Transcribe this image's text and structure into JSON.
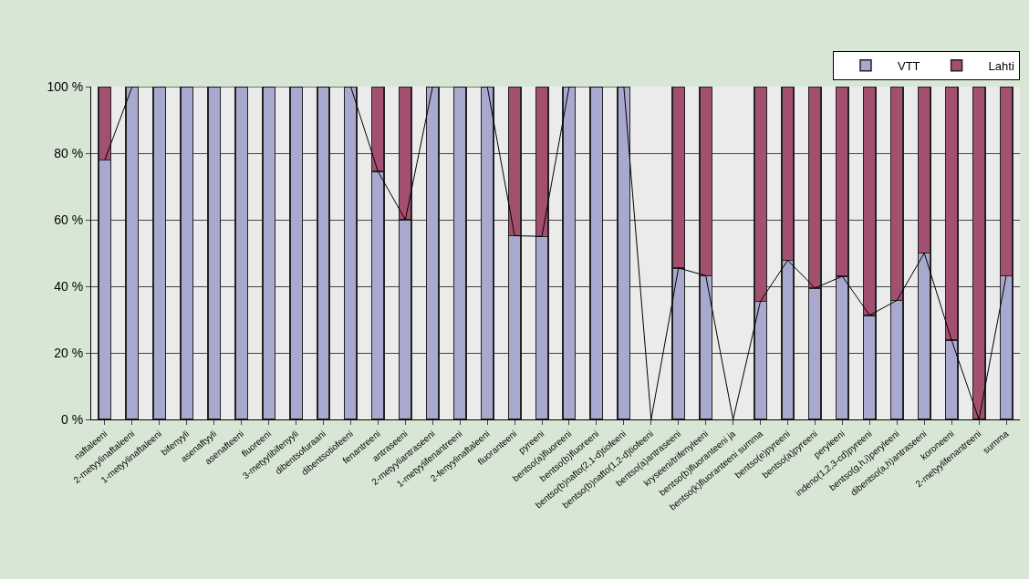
{
  "chart_data": {
    "type": "bar",
    "stacked": true,
    "categories": [
      "naftaleeni",
      "2-metyylinaftaleeni",
      "1-metyylinaftaleeni",
      "bifenyyli",
      "asenaftyyli",
      "asenafteeni",
      "fluoreeni",
      "3-metyylibifenyyli",
      "dibentsofuraani",
      "dibentsotiofeeni",
      "fenantreeni",
      "antraseeni",
      "2-metyyliantraseeni",
      "1-metyylifenantreeni",
      "2-fenyylinaftaleeni",
      "fluoranteeni",
      "pyreeni",
      "bentso(a)fluoreeni",
      "bentso(b)fluoreeni",
      "bentso(b)nafto(2,1-d)tiofeeni",
      "bentso(b)nafto(1,2-d)tiofeeni",
      "bentso(a)antraseeni",
      "kryseeni/trifenyleeni",
      "bentso(b)fluoranteeni ja",
      "bentso(k)fluoranteeni summa",
      "bentso(e)pyreeni",
      "bentso(a)pyreeni",
      "peryleeni",
      "indeno(1,2,3-cd)pyreeni",
      "bentso(g,h,i)peryleeni",
      "dibentso(a,h)antraseeni",
      "koroneeni",
      "2-metyylifenantreeni",
      "summa"
    ],
    "series": [
      {
        "name": "VTT",
        "color": "#a9a9d0",
        "values": [
          78,
          100,
          100,
          100,
          100,
          100,
          100,
          100,
          100,
          100,
          74.5,
          60,
          100,
          100,
          100,
          55.2,
          55,
          100,
          100,
          100,
          0,
          45.5,
          43.2,
          0,
          35.5,
          47.8,
          39.5,
          43,
          31.3,
          35.8,
          50,
          23.8,
          0,
          43.2
        ]
      },
      {
        "name": "Lahti",
        "color": "#a34f70",
        "values": [
          22,
          0,
          0,
          0,
          0,
          0,
          0,
          0,
          0,
          0,
          25.5,
          40,
          0,
          0,
          0,
          44.8,
          45,
          0,
          0,
          0,
          0,
          54.5,
          56.8,
          0,
          64.5,
          52.2,
          60.5,
          57,
          68.7,
          64.2,
          50,
          76.2,
          100,
          56.8
        ]
      },
      {
        "type": "line",
        "color": "#000000",
        "values": [
          78,
          100,
          100,
          100,
          100,
          100,
          100,
          100,
          100,
          100,
          74.5,
          60,
          100,
          100,
          100,
          55.2,
          55,
          100,
          100,
          100,
          0,
          45.5,
          43.2,
          0,
          35.5,
          47.8,
          39.5,
          43,
          31.3,
          35.8,
          50,
          23.8,
          0,
          43.2
        ]
      }
    ],
    "ylim": [
      0,
      100
    ],
    "yticks": [
      {
        "value": 0,
        "label": "0 %"
      },
      {
        "value": 20,
        "label": "20 %"
      },
      {
        "value": 40,
        "label": "40 %"
      },
      {
        "value": 60,
        "label": "60 %"
      },
      {
        "value": 80,
        "label": "80 %"
      },
      {
        "value": 100,
        "label": "100 %"
      }
    ],
    "grid": "y",
    "legend": "top right"
  }
}
